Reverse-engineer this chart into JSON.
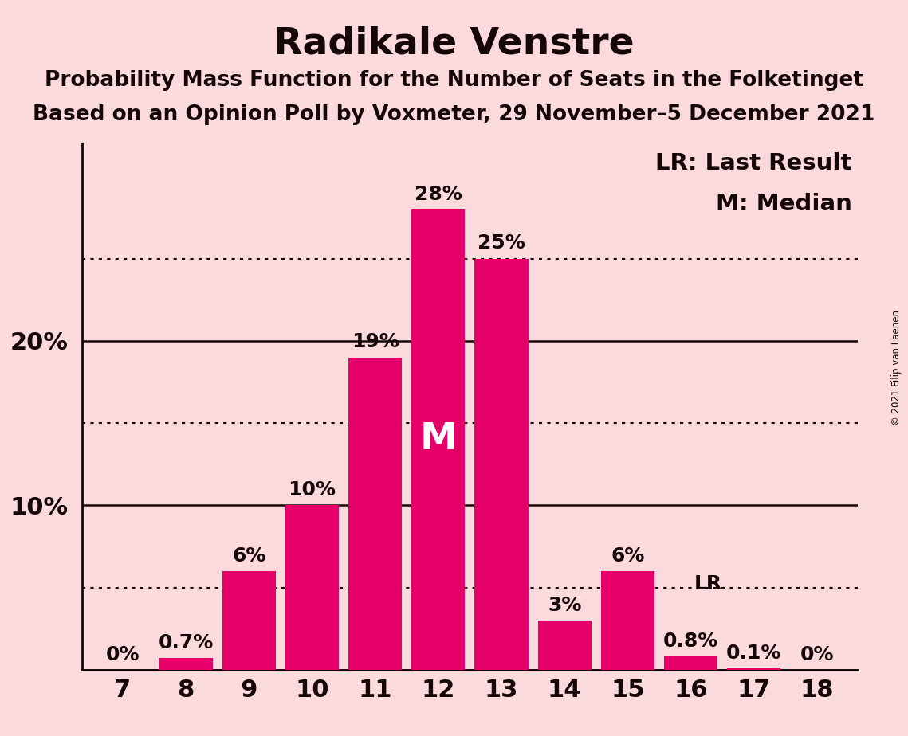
{
  "title": "Radikale Venstre",
  "subtitle1": "Probability Mass Function for the Number of Seats in the Folketinget",
  "subtitle2": "Based on an Opinion Poll by Voxmeter, 29 November–5 December 2021",
  "copyright": "© 2021 Filip van Laenen",
  "seats": [
    7,
    8,
    9,
    10,
    11,
    12,
    13,
    14,
    15,
    16,
    17,
    18
  ],
  "probabilities": [
    0.0,
    0.7,
    6.0,
    10.0,
    19.0,
    28.0,
    25.0,
    3.0,
    6.0,
    0.8,
    0.1,
    0.0
  ],
  "labels": [
    "0%",
    "0.7%",
    "6%",
    "10%",
    "19%",
    "28%",
    "25%",
    "3%",
    "6%",
    "0.8%",
    "0.1%",
    "0%"
  ],
  "bar_color": "#E8006A",
  "background_color": "#FADADD",
  "text_color": "#160808",
  "median_seat": 12,
  "lr_seat": 16,
  "yticks": [
    10,
    20
  ],
  "ytick_labels": [
    "10%",
    "20%"
  ],
  "solid_lines": [
    0,
    10,
    20
  ],
  "dotted_lines": [
    5,
    15,
    25
  ],
  "ylim": [
    0,
    32
  ],
  "xlim": [
    6.35,
    18.65
  ],
  "title_fontsize": 34,
  "subtitle_fontsize": 19,
  "label_fontsize": 18,
  "axis_tick_fontsize": 22,
  "legend_fontsize": 21,
  "m_fontsize": 34,
  "lr_label_fontsize": 18
}
